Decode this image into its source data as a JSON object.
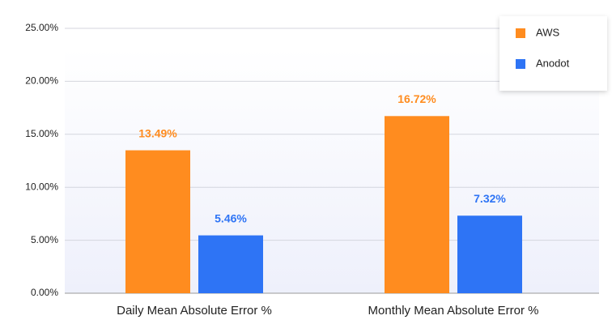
{
  "chart_data": {
    "type": "bar",
    "categories": [
      "Daily Mean Absolute Error %",
      "Monthly Mean Absolute Error %"
    ],
    "series": [
      {
        "name": "AWS",
        "color": "#ff8c1f",
        "values": [
          13.49,
          16.72
        ],
        "value_labels": [
          "13.49%",
          "16.72%"
        ]
      },
      {
        "name": "Anodot",
        "color": "#2e74f5",
        "values": [
          5.46,
          7.32
        ],
        "value_labels": [
          "5.46%",
          "7.32%"
        ]
      }
    ],
    "ylim": [
      0,
      25
    ],
    "yticks": [
      {
        "value": 0,
        "label": "0.00%"
      },
      {
        "value": 5,
        "label": "5.00%"
      },
      {
        "value": 10,
        "label": "10.00%"
      },
      {
        "value": 15,
        "label": "15.00%"
      },
      {
        "value": 20,
        "label": "20.00%"
      },
      {
        "value": 25,
        "label": "25.00%"
      }
    ],
    "grid": true,
    "legend": "top-right"
  }
}
